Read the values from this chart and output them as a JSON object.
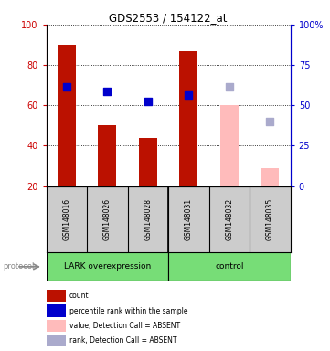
{
  "title": "GDS2553 / 154122_at",
  "samples": [
    "GSM148016",
    "GSM148026",
    "GSM148028",
    "GSM148031",
    "GSM148032",
    "GSM148035"
  ],
  "bar_values": [
    90,
    50,
    44,
    87,
    60,
    29
  ],
  "bar_colors": [
    "#bb1100",
    "#bb1100",
    "#bb1100",
    "#bb1100",
    "#ffbbbb",
    "#ffbbbb"
  ],
  "dot_values": [
    69,
    67,
    62,
    65,
    69,
    52
  ],
  "dot_colors": [
    "#0000cc",
    "#0000cc",
    "#0000cc",
    "#0000cc",
    "#aaaacc",
    "#aaaacc"
  ],
  "absent_flags": [
    false,
    false,
    false,
    false,
    true,
    true
  ],
  "ylim_left": [
    20,
    100
  ],
  "ylim_right": [
    0,
    100
  ],
  "yticks_left": [
    20,
    40,
    60,
    80,
    100
  ],
  "yticks_right": [
    0,
    25,
    50,
    75,
    100
  ],
  "ytick_labels_right": [
    "0",
    "25",
    "50",
    "75",
    "100%"
  ],
  "group1_label": "LARK overexpression",
  "group2_label": "control",
  "protocol_label": "protocol",
  "group1_indices": [
    0,
    1,
    2
  ],
  "group2_indices": [
    3,
    4,
    5
  ],
  "legend_items": [
    {
      "label": "count",
      "color": "#bb1100"
    },
    {
      "label": "percentile rank within the sample",
      "color": "#0000cc"
    },
    {
      "label": "value, Detection Call = ABSENT",
      "color": "#ffbbbb"
    },
    {
      "label": "rank, Detection Call = ABSENT",
      "color": "#aaaacc"
    }
  ],
  "bar_width": 0.45,
  "dot_size": 30,
  "background_color": "#ffffff",
  "plot_bg_color": "#ffffff",
  "sample_bg_color": "#cccccc",
  "group_bg_color": "#77dd77",
  "left_axis_color": "#cc0000",
  "right_axis_color": "#0000cc"
}
